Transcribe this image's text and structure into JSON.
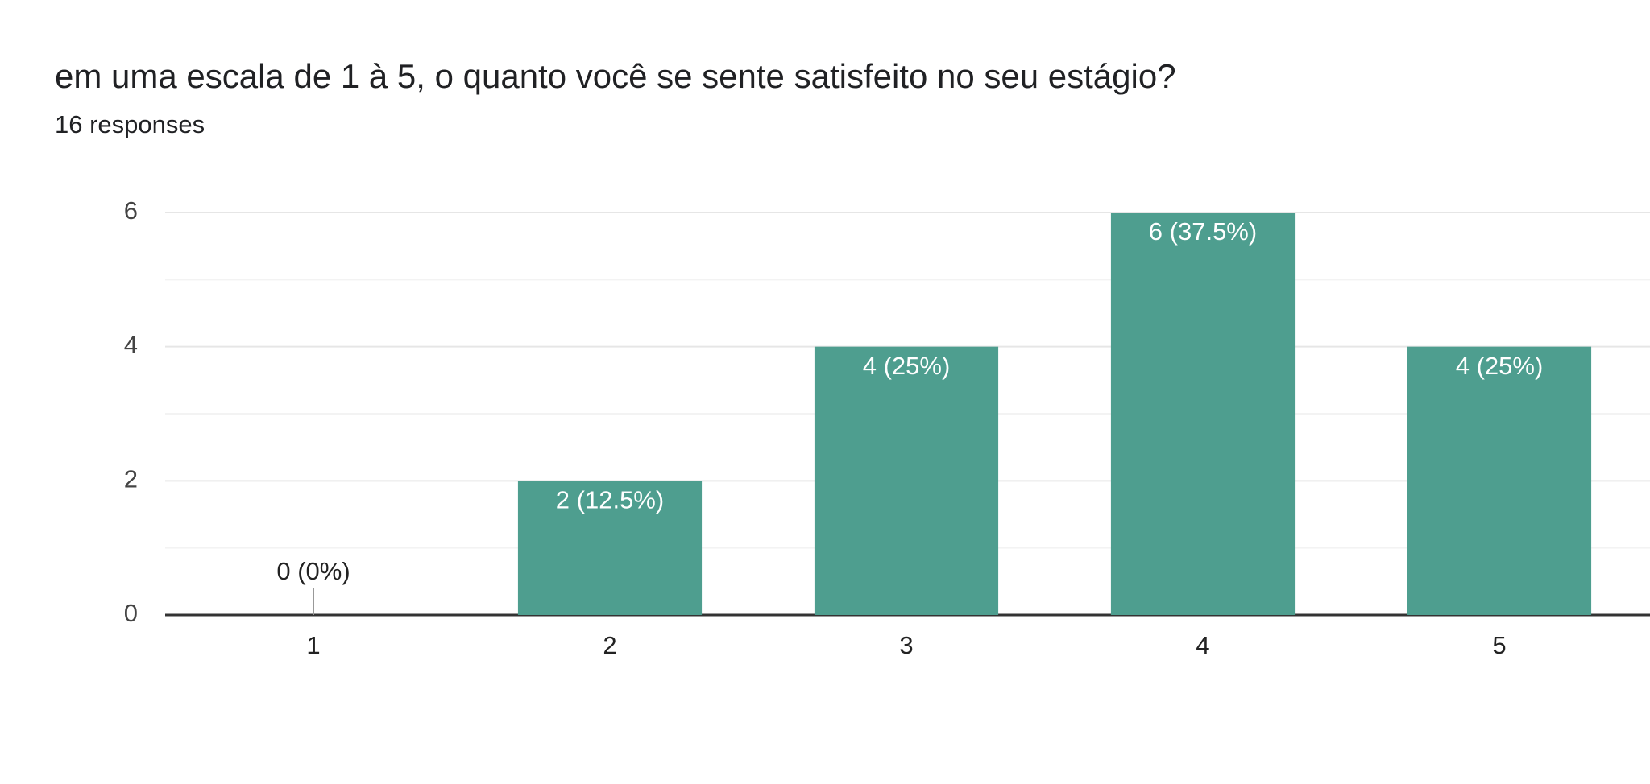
{
  "chart_data": {
    "type": "bar",
    "title": "em uma escala de 1 à 5, o quanto você se sente satisfeito no seu estágio?",
    "subtitle": "16 responses",
    "categories": [
      "1",
      "2",
      "3",
      "4",
      "5"
    ],
    "values": [
      0,
      2,
      4,
      6,
      4
    ],
    "value_labels": [
      "0 (0%)",
      "2 (12.5%)",
      "4 (25%)",
      "6 (37.5%)",
      "4 (25%)"
    ],
    "color": "#4e9e8f",
    "ylim": [
      0,
      6
    ],
    "yticks": [
      0,
      2,
      4,
      6
    ],
    "grid": true
  }
}
